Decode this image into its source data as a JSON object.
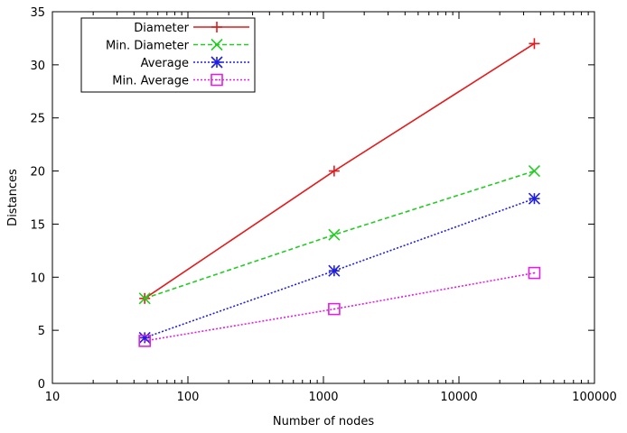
{
  "chart_data": {
    "type": "line",
    "xlabel": "Number of nodes",
    "ylabel": "Distances",
    "xscale": "log",
    "xlim": [
      10,
      100000
    ],
    "ylim": [
      0,
      35
    ],
    "x_ticks": [
      "10",
      "100",
      "1000",
      "10000",
      "100000"
    ],
    "y_ticks": [
      "0",
      "5",
      "10",
      "15",
      "20",
      "25",
      "30",
      "35"
    ],
    "grid": false,
    "legend_position": "top-left",
    "x": [
      48,
      1200,
      36000
    ],
    "series": [
      {
        "name": "Diameter",
        "values": [
          8,
          20,
          32
        ],
        "color": "#e41a1c",
        "marker": "plus",
        "dash": "solid"
      },
      {
        "name": "Min. Diameter",
        "values": [
          8,
          14,
          20
        ],
        "color": "#22cc22",
        "marker": "cross",
        "dash": "dashed"
      },
      {
        "name": "Average",
        "values": [
          4.3,
          10.6,
          17.4
        ],
        "color": "#1f1fe0",
        "marker": "star",
        "dash": "dotted"
      },
      {
        "name": "Min. Average",
        "values": [
          4.0,
          7.0,
          10.4
        ],
        "color": "#e020e0",
        "marker": "square",
        "dash": "dotted"
      }
    ]
  }
}
